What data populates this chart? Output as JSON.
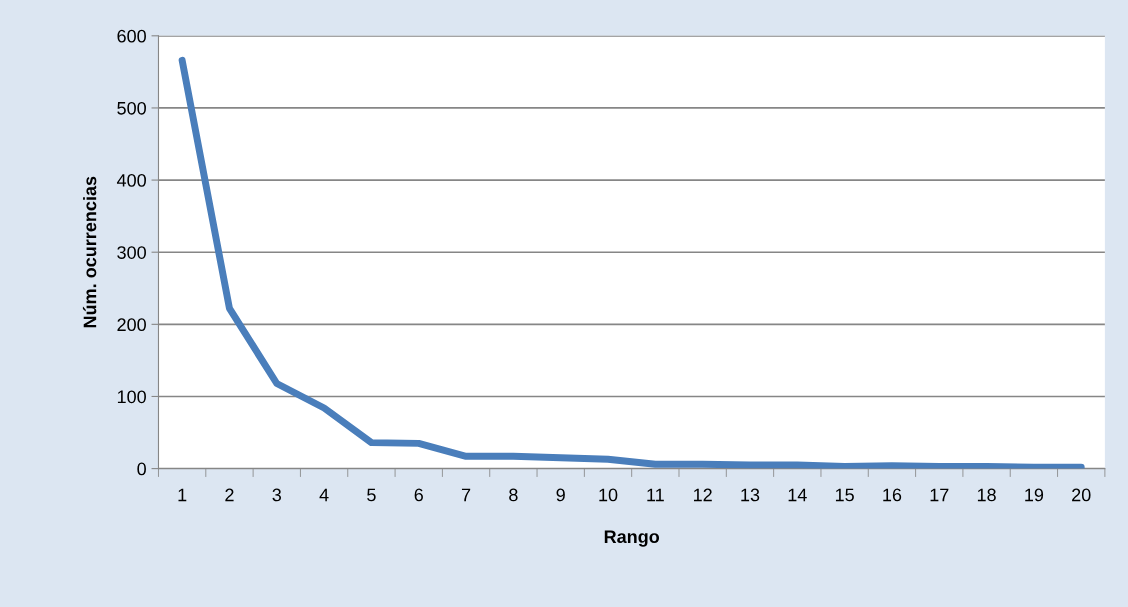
{
  "chart_data": {
    "type": "line",
    "xlabel": "Rango",
    "ylabel": "Núm. ocurrencias",
    "categories": [
      "1",
      "2",
      "3",
      "4",
      "5",
      "6",
      "7",
      "8",
      "9",
      "10",
      "11",
      "12",
      "13",
      "14",
      "15",
      "16",
      "17",
      "18",
      "19",
      "20"
    ],
    "series": [
      {
        "color": "#4a7ebb",
        "values": [
          566,
          222,
          118,
          84,
          36,
          35,
          17,
          17,
          15,
          13,
          6,
          6,
          5,
          5,
          3,
          4,
          3,
          3,
          2,
          2
        ]
      }
    ],
    "ylim": [
      0,
      600
    ],
    "yticks": [
      0,
      100,
      200,
      300,
      400,
      500,
      600
    ],
    "grid": "y",
    "legend": false,
    "marker": "none",
    "line_style": "solid"
  }
}
